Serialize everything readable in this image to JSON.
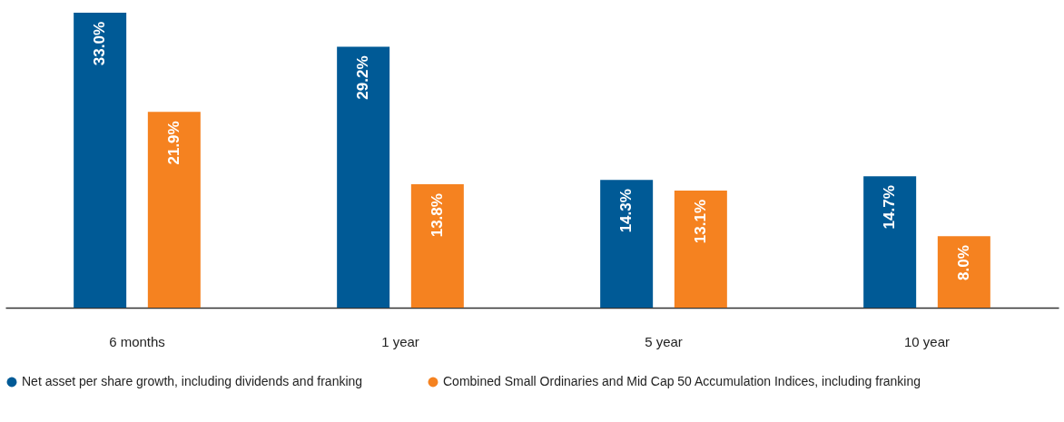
{
  "chart_data": {
    "type": "bar",
    "categories": [
      "6 months",
      "1 year",
      "5 year",
      "10 year"
    ],
    "series": [
      {
        "name": "Net asset per share growth, including dividends and franking",
        "color": "#005a96",
        "values": [
          33.0,
          29.2,
          14.3,
          14.7
        ],
        "value_labels": [
          "33.0%",
          "29.2%",
          "14.3%",
          "14.7%"
        ]
      },
      {
        "name": "Combined Small Ordinaries and Mid Cap 50 Accumulation Indices, including franking",
        "color": "#f58220",
        "values": [
          21.9,
          13.8,
          13.1,
          8.0
        ],
        "value_labels": [
          "21.9%",
          "13.8%",
          "13.1%",
          "8.0%"
        ]
      }
    ],
    "legend": "bottom",
    "grid": false
  }
}
